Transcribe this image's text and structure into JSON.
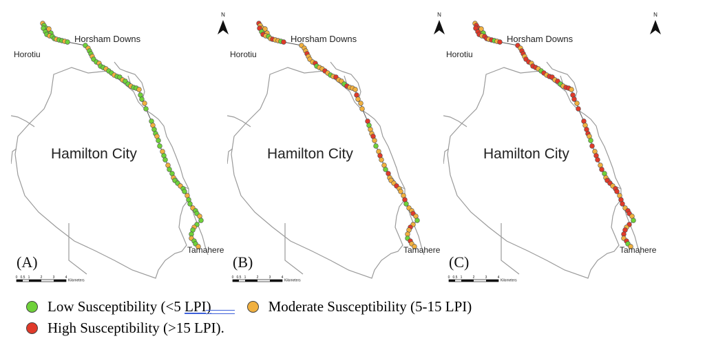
{
  "panels": [
    {
      "label": "(A)",
      "scheme": "A"
    },
    {
      "label": "(B)",
      "scheme": "B"
    },
    {
      "label": "(C)",
      "scheme": "C"
    }
  ],
  "place_names": {
    "horsham": "Horsham Downs",
    "horotiu": "Horotiu",
    "hamilton": "Hamilton City",
    "tamahere": "Tamahere"
  },
  "north_label": "N",
  "scalebar": {
    "ticks": [
      "0",
      "0.5",
      "1",
      "2",
      "3",
      "4"
    ],
    "unit": "Kilometers"
  },
  "legend": {
    "low": {
      "text": "Low Susceptibility (<5 ",
      "lpi": "LPI)",
      "color": "#6fd13a"
    },
    "moderate": {
      "text": "Moderate Susceptibility (5-15 LPI)",
      "color": "#f0b040"
    },
    "high": {
      "text": "High Susceptibility (>15 LPI).",
      "color": "#e03a2a"
    }
  }
}
